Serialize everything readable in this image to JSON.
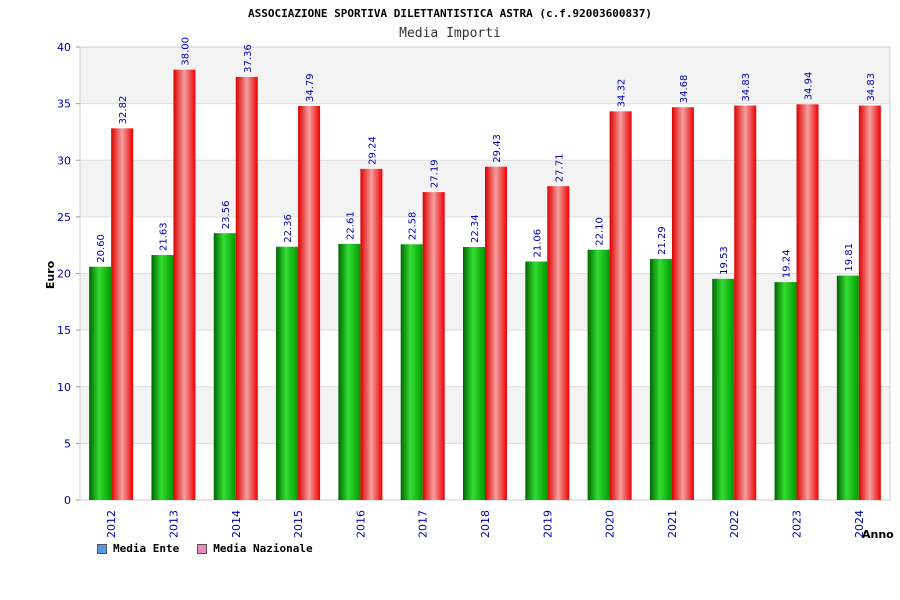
{
  "chart_data": {
    "type": "bar",
    "title": "ASSOCIAZIONE SPORTIVA DILETTANTISTICA ASTRA (c.f.92003600837)",
    "subtitle": "Media Importi",
    "xlabel": "Anno",
    "ylabel": "Euro",
    "ylim": [
      0,
      40
    ],
    "yticks": [
      "0",
      "5",
      "10",
      "15",
      "20",
      "25",
      "30",
      "35",
      "40"
    ],
    "categories": [
      "2012",
      "2013",
      "2014",
      "2015",
      "2016",
      "2017",
      "2018",
      "2019",
      "2020",
      "2021",
      "2022",
      "2023",
      "2024"
    ],
    "series": [
      {
        "name": "Media Ente",
        "values": [
          20.6,
          21.63,
          23.56,
          22.36,
          22.61,
          22.58,
          22.34,
          21.06,
          22.1,
          21.29,
          19.53,
          19.24,
          19.81
        ],
        "labels": [
          "20.60",
          "21.63",
          "23.56",
          "22.36",
          "22.61",
          "22.58",
          "22.34",
          "21.06",
          "22.10",
          "21.29",
          "19.53",
          "19.24",
          "19.81"
        ]
      },
      {
        "name": "Media Nazionale",
        "values": [
          32.82,
          38.0,
          37.36,
          34.79,
          29.24,
          27.19,
          29.43,
          27.71,
          34.32,
          34.68,
          34.83,
          34.94,
          34.83
        ],
        "labels": [
          "32.82",
          "38.00",
          "37.36",
          "34.79",
          "29.24",
          "27.19",
          "29.43",
          "27.71",
          "34.32",
          "34.68",
          "34.83",
          "34.94",
          "34.83"
        ]
      }
    ],
    "grid": true,
    "legend_position": "bottom-left"
  },
  "legend": {
    "items": [
      {
        "label": "Media Ente",
        "color": "#5599ee"
      },
      {
        "label": "Media Nazionale",
        "color": "#ee88bb"
      }
    ]
  },
  "colors": {
    "ente": "#00bb00",
    "nazionale": "#ff1a1a",
    "tick_text": "#0000aa",
    "band": "#f3f3f3"
  }
}
